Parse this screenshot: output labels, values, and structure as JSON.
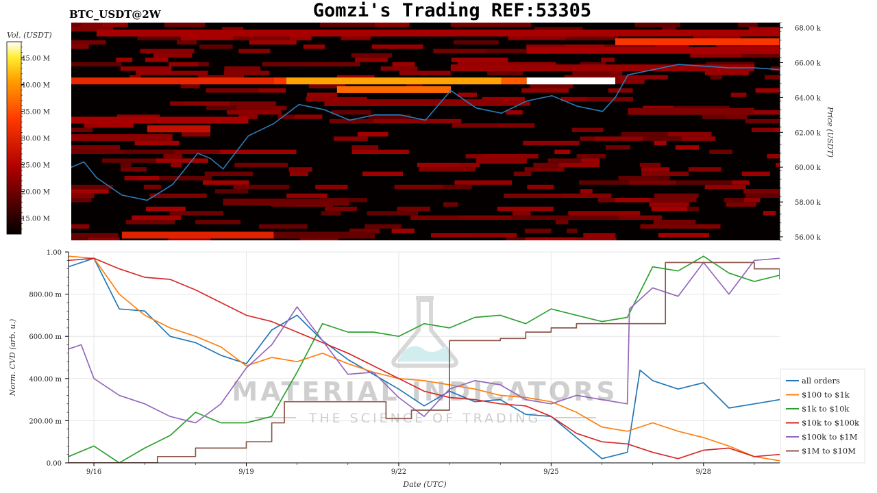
{
  "header": {
    "symbol": "BTC_USDT@2W",
    "title": "Gomzi's Trading REF:53305"
  },
  "watermark": {
    "line1": "MATERIAL INDICATORS",
    "line2": "THE SCIENCE OF TRADING",
    "icon": "flask-icon"
  },
  "colors": {
    "price_line": "#2b7bb9",
    "all_orders": "#1f77b4",
    "100_1k": "#ff7f0e",
    "1k_10k": "#2ca02c",
    "10k_100k": "#d62728",
    "100k_1m": "#9467bd",
    "1m_10m": "#8c564b"
  },
  "chart_data": [
    {
      "type": "heatmap",
      "colorbar_label": "Vol. (USDT)",
      "colorbar_ticks": [
        "15.00 M",
        "20.00 M",
        "25.00 M",
        "30.00 M",
        "35.00 M",
        "40.00 M",
        "45.00 M"
      ],
      "colorbar_values": [
        15,
        20,
        25,
        30,
        35,
        40,
        45
      ],
      "colorbar_range": [
        12,
        48
      ],
      "ylabel": "Price (USDT)",
      "price_ticks": [
        "56.00 k",
        "58.00 k",
        "60.00 k",
        "62.00 k",
        "64.00 k",
        "66.00 k",
        "68.00 k"
      ],
      "price_values": [
        56,
        58,
        60,
        62,
        64,
        66,
        68
      ],
      "ylim": [
        55.8,
        68.3
      ],
      "xlim": [
        "2024-09-15 12:00",
        "2024-09-29 12:00"
      ],
      "bands": [
        {
          "price": 64.95,
          "x0": "2024-09-15 12:00",
          "x1": "2024-09-19 12:00",
          "vol": 31
        },
        {
          "price": 64.95,
          "x0": "2024-09-19 12:00",
          "x1": "2024-09-19 18:00",
          "vol": 33
        },
        {
          "price": 64.95,
          "x0": "2024-09-19 18:00",
          "x1": "2024-09-24 00:00",
          "vol": 41
        },
        {
          "price": 64.95,
          "x0": "2024-09-24 00:00",
          "x1": "2024-09-24 12:00",
          "vol": 36
        },
        {
          "price": 64.95,
          "x0": "2024-09-24 12:00",
          "x1": "2024-09-26 06:00",
          "vol": 48
        },
        {
          "price": 64.45,
          "x0": "2024-09-20 18:00",
          "x1": "2024-09-23 00:00",
          "vol": 37
        },
        {
          "price": 67.2,
          "x0": "2024-09-26 06:00",
          "x1": "2024-09-29 12:00",
          "vol": 33
        },
        {
          "price": 67.7,
          "x0": "2024-09-16 00:00",
          "x1": "2024-09-29 12:00",
          "vol": 24
        },
        {
          "price": 66.7,
          "x0": "2024-09-24 12:00",
          "x1": "2024-09-29 12:00",
          "vol": 24
        },
        {
          "price": 65.7,
          "x0": "2024-09-23 00:00",
          "x1": "2024-09-29 00:00",
          "vol": 23
        },
        {
          "price": 63.7,
          "x0": "2024-09-20 12:00",
          "x1": "2024-09-24 00:00",
          "vol": 22
        },
        {
          "price": 62.7,
          "x0": "2024-09-15 12:00",
          "x1": "2024-09-19 00:00",
          "vol": 24
        },
        {
          "price": 62.2,
          "x0": "2024-09-17 00:00",
          "x1": "2024-09-18 06:00",
          "vol": 27
        },
        {
          "price": 61.7,
          "x0": "2024-09-15 12:00",
          "x1": "2024-09-17 12:00",
          "vol": 22
        },
        {
          "price": 63.2,
          "x0": "2024-09-26 12:00",
          "x1": "2024-09-29 00:00",
          "vol": 21
        },
        {
          "price": 60.4,
          "x0": "2024-09-23 12:00",
          "x1": "2024-09-24 12:00",
          "vol": 22
        },
        {
          "price": 58.0,
          "x0": "2024-09-18 12:00",
          "x1": "2024-09-21 00:00",
          "vol": 20
        },
        {
          "price": 56.1,
          "x0": "2024-09-16 12:00",
          "x1": "2024-09-19 12:00",
          "vol": 30
        },
        {
          "price": 56.1,
          "x0": "2024-09-19 12:00",
          "x1": "2024-09-21 12:00",
          "vol": 19
        }
      ],
      "price_series": {
        "x": [
          "2024-09-15 12:00",
          "2024-09-15 18:00",
          "2024-09-16 00:00",
          "2024-09-16 12:00",
          "2024-09-17 00:00",
          "2024-09-17 12:00",
          "2024-09-18 00:00",
          "2024-09-18 06:00",
          "2024-09-18 12:00",
          "2024-09-19 00:00",
          "2024-09-19 12:00",
          "2024-09-20 00:00",
          "2024-09-20 12:00",
          "2024-09-21 00:00",
          "2024-09-21 12:00",
          "2024-09-22 00:00",
          "2024-09-22 12:00",
          "2024-09-23 00:00",
          "2024-09-23 12:00",
          "2024-09-24 00:00",
          "2024-09-24 12:00",
          "2024-09-25 00:00",
          "2024-09-25 12:00",
          "2024-09-26 00:00",
          "2024-09-26 06:00",
          "2024-09-26 12:00",
          "2024-09-27 00:00",
          "2024-09-27 12:00",
          "2024-09-28 00:00",
          "2024-09-28 12:00",
          "2024-09-29 00:00",
          "2024-09-29 12:00"
        ],
        "y": [
          60.0,
          60.3,
          59.4,
          58.4,
          58.1,
          59.0,
          60.8,
          60.5,
          59.9,
          61.8,
          62.5,
          63.6,
          63.3,
          62.7,
          63.0,
          63.0,
          62.7,
          64.4,
          63.4,
          63.1,
          63.8,
          64.1,
          63.5,
          63.2,
          64.0,
          65.3,
          65.6,
          65.9,
          65.8,
          65.7,
          65.7,
          65.6
        ]
      }
    },
    {
      "type": "line",
      "xlabel": "Date (UTC)",
      "ylabel": "Norm. CVD (arb. u.)",
      "yticks": [
        "0.00",
        "200.00 m",
        "400.00 m",
        "600.00 m",
        "800.00 m",
        "1.00"
      ],
      "ytick_values": [
        0,
        0.2,
        0.4,
        0.6,
        0.8,
        1.0
      ],
      "ylim": [
        0,
        1.0
      ],
      "xticks": [
        "9/16",
        "9/19",
        "9/22",
        "9/25",
        "9/28"
      ],
      "xtick_values": [
        "2024-09-16 00:00",
        "2024-09-19 00:00",
        "2024-09-22 00:00",
        "2024-09-25 00:00",
        "2024-09-28 00:00"
      ],
      "xlim": [
        "2024-09-15 12:00",
        "2024-09-29 12:00"
      ],
      "grid": true,
      "legend_position": "right",
      "series": [
        {
          "name": "all orders",
          "color": "#1f77b4",
          "step": false,
          "x": [
            "2024-09-15 12:00",
            "2024-09-16 00:00",
            "2024-09-16 12:00",
            "2024-09-17 00:00",
            "2024-09-17 12:00",
            "2024-09-18 00:00",
            "2024-09-18 12:00",
            "2024-09-19 00:00",
            "2024-09-19 12:00",
            "2024-09-20 00:00",
            "2024-09-20 12:00",
            "2024-09-21 00:00",
            "2024-09-21 12:00",
            "2024-09-22 00:00",
            "2024-09-22 12:00",
            "2024-09-23 00:00",
            "2024-09-23 12:00",
            "2024-09-24 00:00",
            "2024-09-24 12:00",
            "2024-09-25 00:00",
            "2024-09-25 12:00",
            "2024-09-26 00:00",
            "2024-09-26 12:00",
            "2024-09-26 18:00",
            "2024-09-27 00:00",
            "2024-09-27 12:00",
            "2024-09-28 00:00",
            "2024-09-28 12:00",
            "2024-09-29 00:00",
            "2024-09-29 12:00"
          ],
          "y": [
            0.93,
            0.97,
            0.73,
            0.72,
            0.6,
            0.57,
            0.51,
            0.47,
            0.63,
            0.7,
            0.58,
            0.49,
            0.42,
            0.35,
            0.27,
            0.34,
            0.29,
            0.3,
            0.23,
            0.22,
            0.12,
            0.02,
            0.05,
            0.44,
            0.39,
            0.35,
            0.38,
            0.26,
            0.28,
            0.3
          ]
        },
        {
          "name": "$100 to $1k",
          "color": "#ff7f0e",
          "step": false,
          "x": [
            "2024-09-15 12:00",
            "2024-09-16 00:00",
            "2024-09-16 12:00",
            "2024-09-17 00:00",
            "2024-09-17 12:00",
            "2024-09-18 00:00",
            "2024-09-18 12:00",
            "2024-09-19 00:00",
            "2024-09-19 12:00",
            "2024-09-20 00:00",
            "2024-09-20 12:00",
            "2024-09-21 00:00",
            "2024-09-21 12:00",
            "2024-09-22 00:00",
            "2024-09-22 12:00",
            "2024-09-23 00:00",
            "2024-09-23 12:00",
            "2024-09-24 00:00",
            "2024-09-24 12:00",
            "2024-09-25 00:00",
            "2024-09-25 12:00",
            "2024-09-26 00:00",
            "2024-09-26 12:00",
            "2024-09-27 00:00",
            "2024-09-27 12:00",
            "2024-09-28 00:00",
            "2024-09-28 12:00",
            "2024-09-29 00:00",
            "2024-09-29 12:00"
          ],
          "y": [
            0.98,
            0.97,
            0.8,
            0.7,
            0.64,
            0.6,
            0.55,
            0.46,
            0.5,
            0.48,
            0.52,
            0.47,
            0.43,
            0.4,
            0.39,
            0.37,
            0.35,
            0.32,
            0.31,
            0.29,
            0.24,
            0.17,
            0.15,
            0.19,
            0.15,
            0.12,
            0.08,
            0.03,
            0.01
          ]
        },
        {
          "name": "$1k to $10k",
          "color": "#2ca02c",
          "step": false,
          "x": [
            "2024-09-15 12:00",
            "2024-09-16 00:00",
            "2024-09-16 12:00",
            "2024-09-17 00:00",
            "2024-09-17 12:00",
            "2024-09-18 00:00",
            "2024-09-18 12:00",
            "2024-09-19 00:00",
            "2024-09-19 12:00",
            "2024-09-20 00:00",
            "2024-09-20 12:00",
            "2024-09-21 00:00",
            "2024-09-21 12:00",
            "2024-09-22 00:00",
            "2024-09-22 12:00",
            "2024-09-23 00:00",
            "2024-09-23 12:00",
            "2024-09-24 00:00",
            "2024-09-24 12:00",
            "2024-09-25 00:00",
            "2024-09-25 12:00",
            "2024-09-26 00:00",
            "2024-09-26 12:00",
            "2024-09-27 00:00",
            "2024-09-27 12:00",
            "2024-09-28 00:00",
            "2024-09-28 12:00",
            "2024-09-29 00:00",
            "2024-09-29 12:00"
          ],
          "y": [
            0.03,
            0.08,
            0.0,
            0.07,
            0.13,
            0.24,
            0.19,
            0.19,
            0.22,
            0.43,
            0.66,
            0.62,
            0.62,
            0.6,
            0.66,
            0.64,
            0.69,
            0.7,
            0.66,
            0.73,
            0.7,
            0.67,
            0.69,
            0.93,
            0.91,
            0.98,
            0.9,
            0.86,
            0.89
          ]
        },
        {
          "name": "$10k to $100k",
          "color": "#d62728",
          "step": false,
          "x": [
            "2024-09-15 12:00",
            "2024-09-16 00:00",
            "2024-09-16 12:00",
            "2024-09-17 00:00",
            "2024-09-17 12:00",
            "2024-09-18 00:00",
            "2024-09-18 12:00",
            "2024-09-19 00:00",
            "2024-09-19 12:00",
            "2024-09-20 00:00",
            "2024-09-20 12:00",
            "2024-09-21 00:00",
            "2024-09-21 12:00",
            "2024-09-22 00:00",
            "2024-09-22 12:00",
            "2024-09-23 00:00",
            "2024-09-23 12:00",
            "2024-09-24 00:00",
            "2024-09-24 12:00",
            "2024-09-25 00:00",
            "2024-09-25 12:00",
            "2024-09-26 00:00",
            "2024-09-26 12:00",
            "2024-09-27 00:00",
            "2024-09-27 12:00",
            "2024-09-28 00:00",
            "2024-09-28 12:00",
            "2024-09-29 00:00",
            "2024-09-29 12:00"
          ],
          "y": [
            0.96,
            0.97,
            0.92,
            0.88,
            0.87,
            0.82,
            0.76,
            0.7,
            0.67,
            0.62,
            0.57,
            0.52,
            0.46,
            0.4,
            0.34,
            0.31,
            0.3,
            0.28,
            0.27,
            0.22,
            0.14,
            0.1,
            0.09,
            0.05,
            0.02,
            0.06,
            0.07,
            0.03,
            0.04
          ]
        },
        {
          "name": "$100k to $1M",
          "color": "#9467bd",
          "step": false,
          "x": [
            "2024-09-15 12:00",
            "2024-09-15 18:00",
            "2024-09-16 00:00",
            "2024-09-16 12:00",
            "2024-09-17 00:00",
            "2024-09-17 12:00",
            "2024-09-18 00:00",
            "2024-09-18 12:00",
            "2024-09-19 00:00",
            "2024-09-19 12:00",
            "2024-09-20 00:00",
            "2024-09-20 12:00",
            "2024-09-21 00:00",
            "2024-09-21 12:00",
            "2024-09-22 00:00",
            "2024-09-22 12:00",
            "2024-09-23 00:00",
            "2024-09-23 12:00",
            "2024-09-24 00:00",
            "2024-09-24 12:00",
            "2024-09-25 00:00",
            "2024-09-25 12:00",
            "2024-09-26 00:00",
            "2024-09-26 12:00",
            "2024-09-26 13:00",
            "2024-09-27 00:00",
            "2024-09-27 12:00",
            "2024-09-28 00:00",
            "2024-09-28 12:00",
            "2024-09-29 00:00",
            "2024-09-29 12:00"
          ],
          "y": [
            0.54,
            0.56,
            0.4,
            0.32,
            0.28,
            0.22,
            0.19,
            0.28,
            0.45,
            0.56,
            0.74,
            0.58,
            0.42,
            0.43,
            0.31,
            0.22,
            0.35,
            0.39,
            0.37,
            0.3,
            0.28,
            0.32,
            0.3,
            0.28,
            0.73,
            0.83,
            0.79,
            0.95,
            0.8,
            0.96,
            0.97
          ]
        },
        {
          "name": "$1M to $10M",
          "color": "#8c564b",
          "step": true,
          "x": [
            "2024-09-15 12:00",
            "2024-09-17 06:00",
            "2024-09-17 12:00",
            "2024-09-18 00:00",
            "2024-09-19 00:00",
            "2024-09-19 12:00",
            "2024-09-19 18:00",
            "2024-09-20 00:00",
            "2024-09-21 00:00",
            "2024-09-21 18:00",
            "2024-09-22 06:00",
            "2024-09-23 00:00",
            "2024-09-23 06:00",
            "2024-09-24 00:00",
            "2024-09-24 12:00",
            "2024-09-25 00:00",
            "2024-09-25 12:00",
            "2024-09-26 12:00",
            "2024-09-27 06:00",
            "2024-09-28 06:00",
            "2024-09-29 00:00",
            "2024-09-29 12:00"
          ],
          "y": [
            0.0,
            0.03,
            0.03,
            0.07,
            0.1,
            0.19,
            0.29,
            0.29,
            0.29,
            0.21,
            0.25,
            0.58,
            0.58,
            0.59,
            0.62,
            0.64,
            0.66,
            0.66,
            0.95,
            0.95,
            0.92,
            0.87
          ]
        }
      ]
    }
  ]
}
